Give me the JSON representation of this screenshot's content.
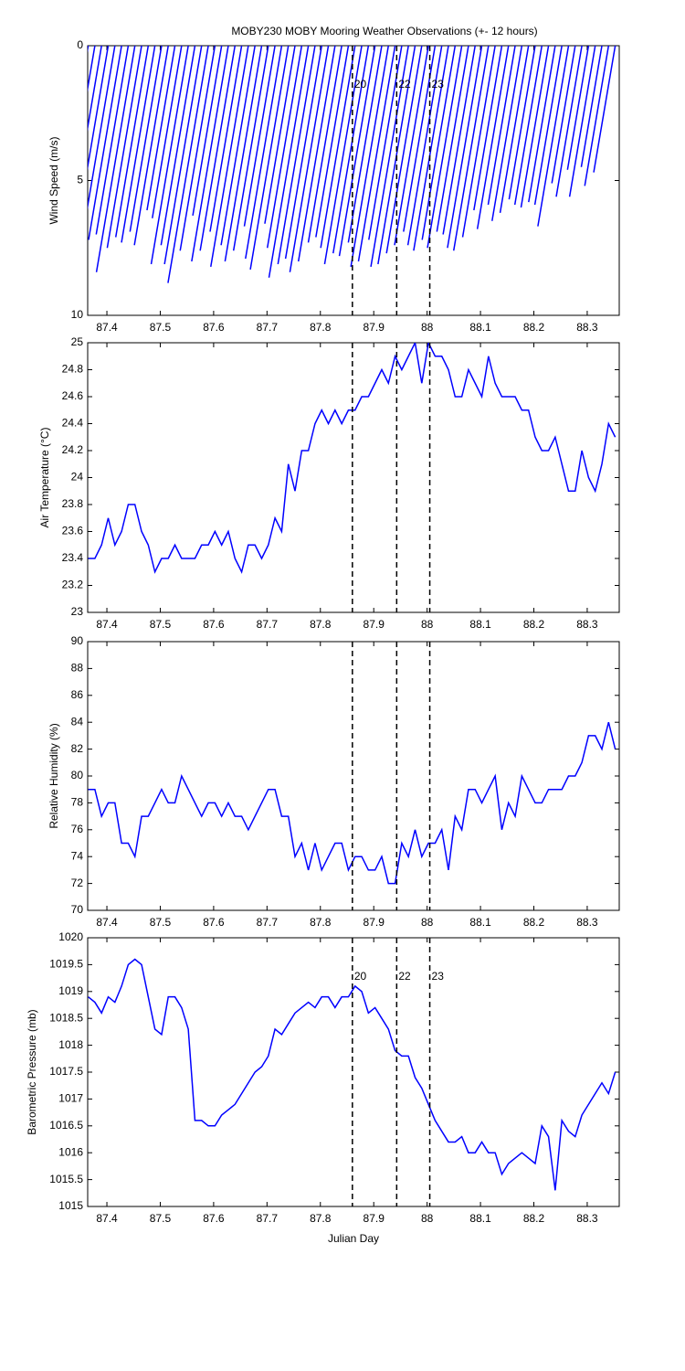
{
  "chart_data": [
    {
      "type": "stick",
      "title": "MOBY230 MOBY Mooring Weather Observations (+- 12 hours)",
      "ylabel": "Wind Speed (m/s)",
      "x": [
        87.365,
        87.3775,
        87.39,
        87.4025,
        87.415,
        87.4275,
        87.44,
        87.4525,
        87.465,
        87.4775,
        87.49,
        87.5025,
        87.515,
        87.5275,
        87.54,
        87.5525,
        87.565,
        87.5775,
        87.59,
        87.6025,
        87.615,
        87.6275,
        87.64,
        87.6525,
        87.665,
        87.6775,
        87.69,
        87.7025,
        87.715,
        87.7275,
        87.74,
        87.7525,
        87.765,
        87.7775,
        87.79,
        87.8025,
        87.815,
        87.8275,
        87.84,
        87.8525,
        87.865,
        87.8775,
        87.89,
        87.9025,
        87.915,
        87.9275,
        87.94,
        87.9525,
        87.965,
        87.9775,
        87.99,
        88.0025,
        88.015,
        88.0275,
        88.04,
        88.0525,
        88.065,
        88.0775,
        88.09,
        88.1025,
        88.115,
        88.1275,
        88.14,
        88.1525,
        88.165,
        88.1775,
        88.19,
        88.2025,
        88.215,
        88.2275,
        88.24,
        88.2525,
        88.265,
        88.2775,
        88.29,
        88.3025,
        88.315,
        88.3275,
        88.34,
        88.3525
      ],
      "series": [
        {
          "color": "#0000ff",
          "values": [
            7.8,
            6.1,
            7.5,
            7.7,
            6.9,
            7.2,
            7.0,
            8.4,
            7.5,
            7.1,
            7.3,
            6.9,
            7.4,
            6.1,
            6.4,
            8.1,
            7.4,
            8.1,
            8.8,
            7.6,
            6.3,
            8.0,
            7.6,
            6.9,
            8.2,
            7.4,
            8.0,
            7.6,
            6.7,
            7.9,
            8.3,
            6.6,
            7.5,
            8.6,
            8.1,
            7.9,
            8.4,
            8.0,
            7.3,
            7.1,
            7.5,
            8.1,
            7.7,
            7.8,
            7.3,
            8.2,
            8.0,
            7.2,
            8.2,
            8.1,
            7.7,
            7.4,
            6.9,
            7.4,
            7.6,
            7.2,
            7.5,
            6.9,
            7.0,
            7.5,
            7.6,
            7.1,
            6.1,
            6.8,
            5.9,
            6.5,
            6.2,
            5.7,
            5.9,
            6.0,
            5.8,
            5.9,
            6.7,
            5.1,
            5.6,
            4.6,
            5.6,
            4.5,
            5.2,
            4.7
          ]
        }
      ],
      "xlim": [
        87.364,
        88.36
      ],
      "xticks": [
        87.4,
        87.5,
        87.6,
        87.7,
        87.8,
        87.9,
        88,
        88.1,
        88.2,
        88.3
      ],
      "ylim": [
        0,
        10
      ],
      "yticks": [
        0,
        5,
        10
      ],
      "y_reversed": true,
      "vlines": [
        {
          "x": 87.86,
          "label": "20"
        },
        {
          "x": 87.943,
          "label": "22"
        },
        {
          "x": 88.005,
          "label": "23"
        }
      ],
      "vline_label_color": "#cc3333"
    },
    {
      "type": "line",
      "ylabel": "Air Temperature (°C)",
      "x": [
        87.365,
        87.3775,
        87.39,
        87.4025,
        87.415,
        87.4275,
        87.44,
        87.4525,
        87.465,
        87.4775,
        87.49,
        87.5025,
        87.515,
        87.5275,
        87.54,
        87.5525,
        87.565,
        87.5775,
        87.59,
        87.6025,
        87.615,
        87.6275,
        87.64,
        87.6525,
        87.665,
        87.6775,
        87.69,
        87.7025,
        87.715,
        87.7275,
        87.74,
        87.7525,
        87.765,
        87.7775,
        87.79,
        87.8025,
        87.815,
        87.8275,
        87.84,
        87.8525,
        87.865,
        87.8775,
        87.89,
        87.9025,
        87.915,
        87.9275,
        87.94,
        87.9525,
        87.965,
        87.9775,
        87.99,
        88.0025,
        88.015,
        88.0275,
        88.04,
        88.0525,
        88.065,
        88.0775,
        88.09,
        88.1025,
        88.115,
        88.1275,
        88.14,
        88.1525,
        88.165,
        88.1775,
        88.19,
        88.2025,
        88.215,
        88.2275,
        88.24,
        88.2525,
        88.265,
        88.2775,
        88.29,
        88.3025,
        88.315,
        88.3275,
        88.34,
        88.3525
      ],
      "series": [
        {
          "color": "#0000ff",
          "values": [
            23.4,
            23.4,
            23.5,
            23.7,
            23.5,
            23.6,
            23.8,
            23.8,
            23.6,
            23.5,
            23.3,
            23.4,
            23.4,
            23.5,
            23.4,
            23.4,
            23.4,
            23.5,
            23.5,
            23.6,
            23.5,
            23.6,
            23.4,
            23.3,
            23.5,
            23.5,
            23.4,
            23.5,
            23.7,
            23.6,
            24.1,
            23.9,
            24.2,
            24.2,
            24.4,
            24.5,
            24.4,
            24.5,
            24.4,
            24.5,
            24.5,
            24.6,
            24.6,
            24.7,
            24.8,
            24.7,
            24.9,
            24.8,
            24.9,
            25.0,
            24.7,
            25.0,
            24.9,
            24.9,
            24.8,
            24.6,
            24.6,
            24.8,
            24.7,
            24.6,
            24.9,
            24.7,
            24.6,
            24.6,
            24.6,
            24.5,
            24.5,
            24.3,
            24.2,
            24.2,
            24.3,
            24.1,
            23.9,
            23.9,
            24.2,
            24.0,
            23.9,
            24.1,
            24.4,
            24.3
          ]
        }
      ],
      "xlim": [
        87.364,
        88.36
      ],
      "xticks": [
        87.4,
        87.5,
        87.6,
        87.7,
        87.8,
        87.9,
        88,
        88.1,
        88.2,
        88.3
      ],
      "ylim": [
        23,
        25
      ],
      "yticks": [
        23,
        23.2,
        23.4,
        23.6,
        23.8,
        24,
        24.2,
        24.4,
        24.6,
        24.8,
        25
      ],
      "vlines": [
        {
          "x": 87.86
        },
        {
          "x": 87.943
        },
        {
          "x": 88.005
        }
      ]
    },
    {
      "type": "line",
      "ylabel": "Relative Humidity (%)",
      "x": [
        87.365,
        87.3775,
        87.39,
        87.4025,
        87.415,
        87.4275,
        87.44,
        87.4525,
        87.465,
        87.4775,
        87.49,
        87.5025,
        87.515,
        87.5275,
        87.54,
        87.5525,
        87.565,
        87.5775,
        87.59,
        87.6025,
        87.615,
        87.6275,
        87.64,
        87.6525,
        87.665,
        87.6775,
        87.69,
        87.7025,
        87.715,
        87.7275,
        87.74,
        87.7525,
        87.765,
        87.7775,
        87.79,
        87.8025,
        87.815,
        87.8275,
        87.84,
        87.8525,
        87.865,
        87.8775,
        87.89,
        87.9025,
        87.915,
        87.9275,
        87.94,
        87.9525,
        87.965,
        87.9775,
        87.99,
        88.0025,
        88.015,
        88.0275,
        88.04,
        88.0525,
        88.065,
        88.0775,
        88.09,
        88.1025,
        88.115,
        88.1275,
        88.14,
        88.1525,
        88.165,
        88.1775,
        88.19,
        88.2025,
        88.215,
        88.2275,
        88.24,
        88.2525,
        88.265,
        88.2775,
        88.29,
        88.3025,
        88.315,
        88.3275,
        88.34,
        88.3525
      ],
      "series": [
        {
          "color": "#0000ff",
          "values": [
            79,
            79,
            77,
            78,
            78,
            75,
            75,
            74,
            77,
            77,
            78,
            79,
            78,
            78,
            80,
            79,
            78,
            77,
            78,
            78,
            77,
            78,
            77,
            77,
            76,
            77,
            78,
            79,
            79,
            77,
            77,
            74,
            75,
            73,
            75,
            73,
            74,
            75,
            75,
            73,
            74,
            74,
            73,
            73,
            74,
            72,
            72,
            75,
            74,
            76,
            74,
            75,
            75,
            76,
            73,
            77,
            76,
            79,
            79,
            78,
            79,
            80,
            76,
            78,
            77,
            80,
            79,
            78,
            78,
            79,
            79,
            79,
            80,
            80,
            81,
            83,
            83,
            82,
            84,
            82
          ]
        }
      ],
      "xlim": [
        87.364,
        88.36
      ],
      "xticks": [
        87.4,
        87.5,
        87.6,
        87.7,
        87.8,
        87.9,
        88,
        88.1,
        88.2,
        88.3
      ],
      "ylim": [
        70,
        90
      ],
      "yticks": [
        70,
        72,
        74,
        76,
        78,
        80,
        82,
        84,
        86,
        88,
        90
      ],
      "vlines": [
        {
          "x": 87.86
        },
        {
          "x": 87.943
        },
        {
          "x": 88.005
        }
      ]
    },
    {
      "type": "line",
      "ylabel": "Barometric Pressure (mb)",
      "xlabel": "Julian Day",
      "x": [
        87.365,
        87.3775,
        87.39,
        87.4025,
        87.415,
        87.4275,
        87.44,
        87.4525,
        87.465,
        87.4775,
        87.49,
        87.5025,
        87.515,
        87.5275,
        87.54,
        87.5525,
        87.565,
        87.5775,
        87.59,
        87.6025,
        87.615,
        87.6275,
        87.64,
        87.6525,
        87.665,
        87.6775,
        87.69,
        87.7025,
        87.715,
        87.7275,
        87.74,
        87.7525,
        87.765,
        87.7775,
        87.79,
        87.8025,
        87.815,
        87.8275,
        87.84,
        87.8525,
        87.865,
        87.8775,
        87.89,
        87.9025,
        87.915,
        87.9275,
        87.94,
        87.9525,
        87.965,
        87.9775,
        87.99,
        88.0025,
        88.015,
        88.0275,
        88.04,
        88.0525,
        88.065,
        88.0775,
        88.09,
        88.1025,
        88.115,
        88.1275,
        88.14,
        88.1525,
        88.165,
        88.1775,
        88.19,
        88.2025,
        88.215,
        88.2275,
        88.24,
        88.2525,
        88.265,
        88.2775,
        88.29,
        88.3025,
        88.315,
        88.3275,
        88.34,
        88.3525
      ],
      "series": [
        {
          "color": "#0000ff",
          "values": [
            1018.9,
            1018.8,
            1018.6,
            1018.9,
            1018.8,
            1019.1,
            1019.5,
            1019.6,
            1019.5,
            1018.9,
            1018.3,
            1018.2,
            1018.9,
            1018.9,
            1018.7,
            1018.3,
            1016.6,
            1016.6,
            1016.5,
            1016.5,
            1016.7,
            1016.8,
            1016.9,
            1017.1,
            1017.3,
            1017.5,
            1017.6,
            1017.8,
            1018.3,
            1018.2,
            1018.4,
            1018.6,
            1018.7,
            1018.8,
            1018.7,
            1018.9,
            1018.9,
            1018.7,
            1018.9,
            1018.9,
            1019.1,
            1019.0,
            1018.6,
            1018.7,
            1018.5,
            1018.3,
            1017.9,
            1017.8,
            1017.8,
            1017.4,
            1017.2,
            1016.9,
            1016.6,
            1016.4,
            1016.2,
            1016.2,
            1016.3,
            1016.0,
            1016.0,
            1016.2,
            1016.0,
            1016.0,
            1015.6,
            1015.8,
            1015.9,
            1016.0,
            1015.9,
            1015.8,
            1016.5,
            1016.3,
            1015.3,
            1016.6,
            1016.4,
            1016.3,
            1016.7,
            1016.9,
            1017.1,
            1017.3,
            1017.1,
            1017.5
          ]
        }
      ],
      "xlim": [
        87.364,
        88.36
      ],
      "xticks": [
        87.4,
        87.5,
        87.6,
        87.7,
        87.8,
        87.9,
        88,
        88.1,
        88.2,
        88.3
      ],
      "ylim": [
        1015,
        1020
      ],
      "yticks": [
        1015,
        1015.5,
        1016,
        1016.5,
        1017,
        1017.5,
        1018,
        1018.5,
        1019,
        1019.5,
        1020
      ],
      "vlines": [
        {
          "x": 87.86,
          "label": "20"
        },
        {
          "x": 87.943,
          "label": "22"
        },
        {
          "x": 88.005,
          "label": "23"
        }
      ],
      "vline_label_color": "#cc3333"
    }
  ]
}
